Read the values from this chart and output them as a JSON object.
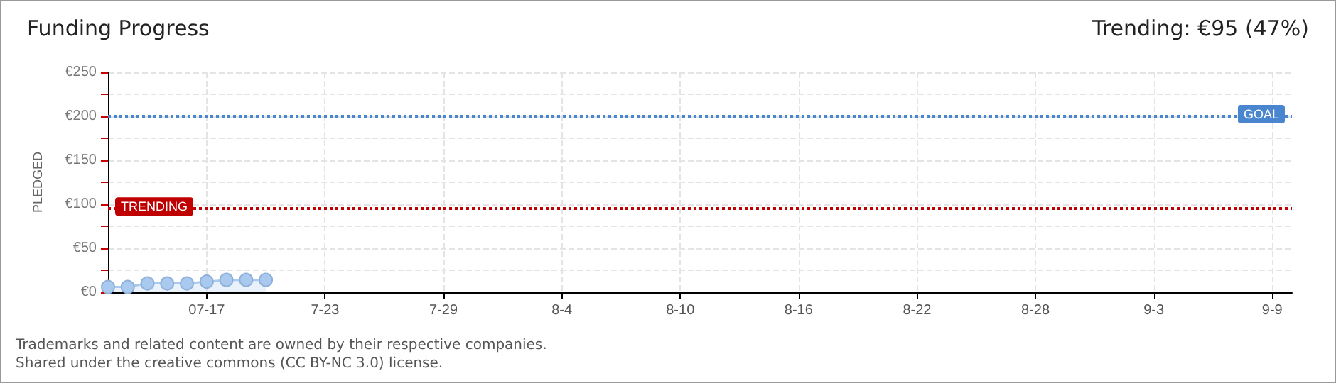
{
  "chart_data": {
    "type": "area",
    "title": "Funding Progress",
    "subtitle": "Trending: €95 (47%)",
    "ylabel": "PLEDGED",
    "annotations": [
      "Trademarks and related content are owned by their respective companies.",
      "Shared under the creative commons (CC BY-NC 3.0) license."
    ],
    "x": [
      "--07-12",
      "--07-13",
      "--07-14",
      "--07-15",
      "--07-16",
      "--07-17",
      "--07-18",
      "--07-19",
      "--07-20"
    ],
    "series": [
      {
        "color": "#a9c9ee",
        "values": [
          6,
          6,
          10,
          10,
          10,
          12,
          14,
          14,
          14
        ]
      }
    ],
    "xlim": [
      "--07-12",
      "--09-10"
    ],
    "xticks": [
      {
        "value": "--07-17",
        "label": "07-17"
      },
      {
        "value": "--07-23",
        "label": "7-23"
      },
      {
        "value": "--07-29",
        "label": "7-29"
      },
      {
        "value": "--08-04",
        "label": "8-4"
      },
      {
        "value": "--08-10",
        "label": "8-10"
      },
      {
        "value": "--08-16",
        "label": "8-16"
      },
      {
        "value": "--08-22",
        "label": "8-22"
      },
      {
        "value": "--08-28",
        "label": "8-28"
      },
      {
        "value": "--09-03",
        "label": "9-3"
      },
      {
        "value": "--09-09",
        "label": "9-9"
      }
    ],
    "ylim": [
      0,
      250
    ],
    "yticks": [
      {
        "value": 0,
        "label": "€0"
      },
      {
        "value": 25,
        "label": null
      },
      {
        "value": 50,
        "label": "€50"
      },
      {
        "value": 75,
        "label": null
      },
      {
        "value": 100,
        "label": "€100"
      },
      {
        "value": 125,
        "label": null
      },
      {
        "value": 150,
        "label": "€150"
      },
      {
        "value": 175,
        "label": null
      },
      {
        "value": 200,
        "label": "€200"
      },
      {
        "value": 225,
        "label": null
      },
      {
        "value": 250,
        "label": "€250"
      }
    ],
    "ref_lines": [
      {
        "axis": "y",
        "value": 200,
        "label": "GOAL",
        "color": "#4a86d0",
        "line_style": "dotted"
      },
      {
        "axis": "y",
        "value": 95,
        "label": "TRENDING",
        "color": "#c00000",
        "line_style": "dotted"
      }
    ],
    "grid": true,
    "marker": "circle",
    "line_style": "solid"
  }
}
